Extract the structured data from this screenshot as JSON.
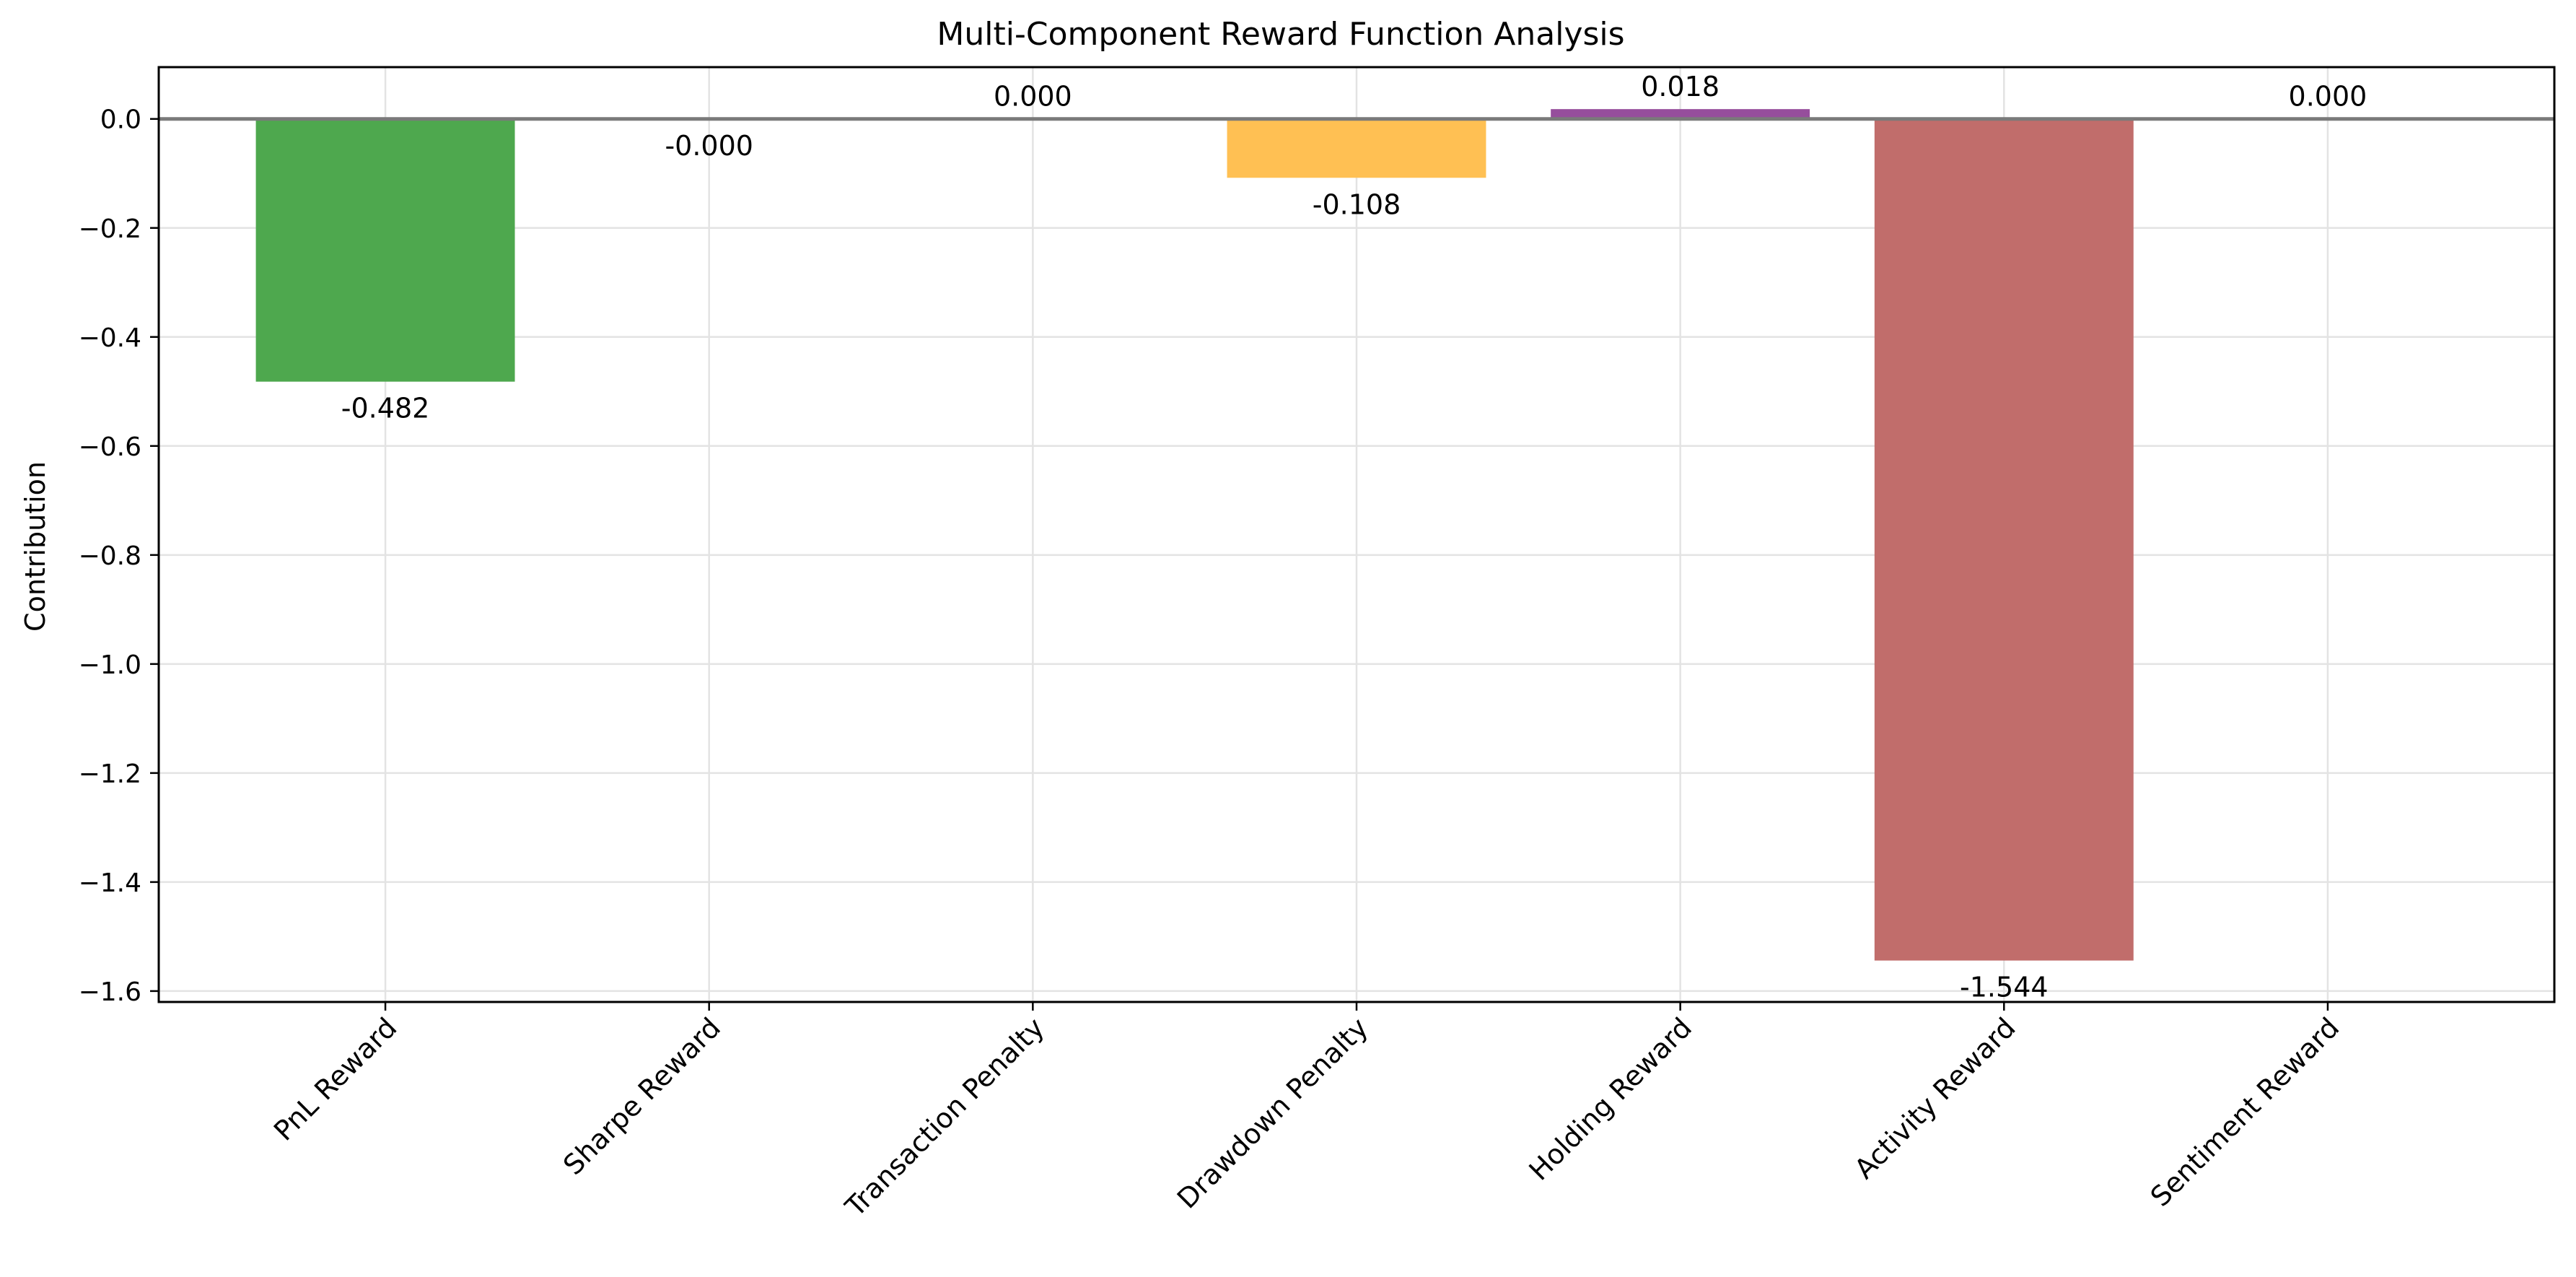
{
  "chart_data": {
    "type": "bar",
    "title": "Multi-Component Reward Function Analysis",
    "xlabel": "",
    "ylabel": "Contribution",
    "categories": [
      "PnL Reward",
      "Sharpe Reward",
      "Transaction Penalty",
      "Drawdown Penalty",
      "Holding Reward",
      "Activity Reward",
      "Sentiment Reward"
    ],
    "values": [
      -0.482,
      -0.0001,
      0.0,
      -0.108,
      0.018,
      -1.544,
      0.0
    ],
    "data_labels": [
      "-0.482",
      "-0.000",
      "0.000",
      "-0.108",
      "0.018",
      "-1.544",
      "0.000"
    ],
    "colors": [
      "#4aa64a",
      "#4f7fc0",
      "#d96a6a",
      "#ffbf50",
      "#944a9a",
      "#c06a68",
      "#e6a0c4"
    ],
    "ylim": [
      -1.62,
      0.095
    ],
    "yticks": [
      0.0,
      -0.2,
      -0.4,
      -0.6,
      -0.8,
      -1.0,
      -1.2,
      -1.4,
      -1.6
    ],
    "ytick_labels": [
      "0.0",
      "−0.2",
      "−0.4",
      "−0.6",
      "−0.8",
      "−1.0",
      "−1.2",
      "−1.4",
      "−1.6"
    ],
    "grid": true,
    "zero_line": true,
    "legend": "none"
  }
}
